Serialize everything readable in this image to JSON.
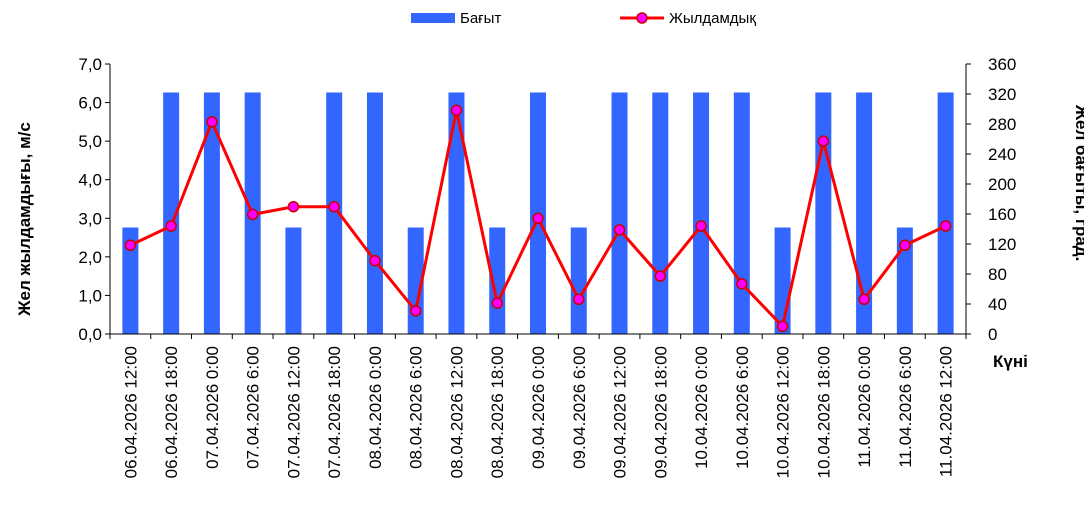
{
  "chart_data": {
    "type": "bar+line",
    "categories": [
      "06.04.2026 12:00",
      "06.04.2026 18:00",
      "07.04.2026 0:00",
      "07.04.2026 6:00",
      "07.04.2026 12:00",
      "07.04.2026 18:00",
      "08.04.2026 0:00",
      "08.04.2026 6:00",
      "08.04.2026 12:00",
      "08.04.2026 18:00",
      "09.04.2026 0:00",
      "09.04.2026 6:00",
      "09.04.2026 12:00",
      "09.04.2026 18:00",
      "10.04.2026 0:00",
      "10.04.2026 6:00",
      "10.04.2026 12:00",
      "10.04.2026 18:00",
      "11.04.2026 0:00",
      "11.04.2026 6:00",
      "11.04.2026 12:00"
    ],
    "series": [
      {
        "name": "Бағыт",
        "kind": "bar",
        "axis": "right",
        "color": "#3366ff",
        "values": [
          142,
          322,
          322,
          322,
          142,
          322,
          322,
          142,
          322,
          142,
          322,
          142,
          322,
          322,
          322,
          322,
          142,
          322,
          322,
          142,
          322
        ]
      },
      {
        "name": "Жылдамдық",
        "kind": "line",
        "axis": "left",
        "color": "#ff0000",
        "marker_color": "#ff00ff",
        "values": [
          2.3,
          2.8,
          5.5,
          3.1,
          3.3,
          3.3,
          1.9,
          0.6,
          5.8,
          0.8,
          3.0,
          0.9,
          2.7,
          1.5,
          2.8,
          1.3,
          0.2,
          5.0,
          0.9,
          2.3,
          2.8
        ]
      }
    ],
    "y_left": {
      "label": "Жел жылдамдығы, м/с",
      "ylim": [
        0,
        7
      ],
      "ticks": [
        "0,0",
        "1,0",
        "2,0",
        "3,0",
        "4,0",
        "5,0",
        "6,0",
        "7,0"
      ]
    },
    "y_right": {
      "label": "Жел бағыты, град.",
      "ylim": [
        0,
        360
      ],
      "ticks": [
        "0",
        "40",
        "80",
        "120",
        "160",
        "200",
        "240",
        "280",
        "320",
        "360"
      ]
    },
    "xlabel": "Күні",
    "legend": {
      "placement": "top-center",
      "entries": [
        "Бағыт",
        "Жылдамдық"
      ]
    },
    "grid": false
  }
}
